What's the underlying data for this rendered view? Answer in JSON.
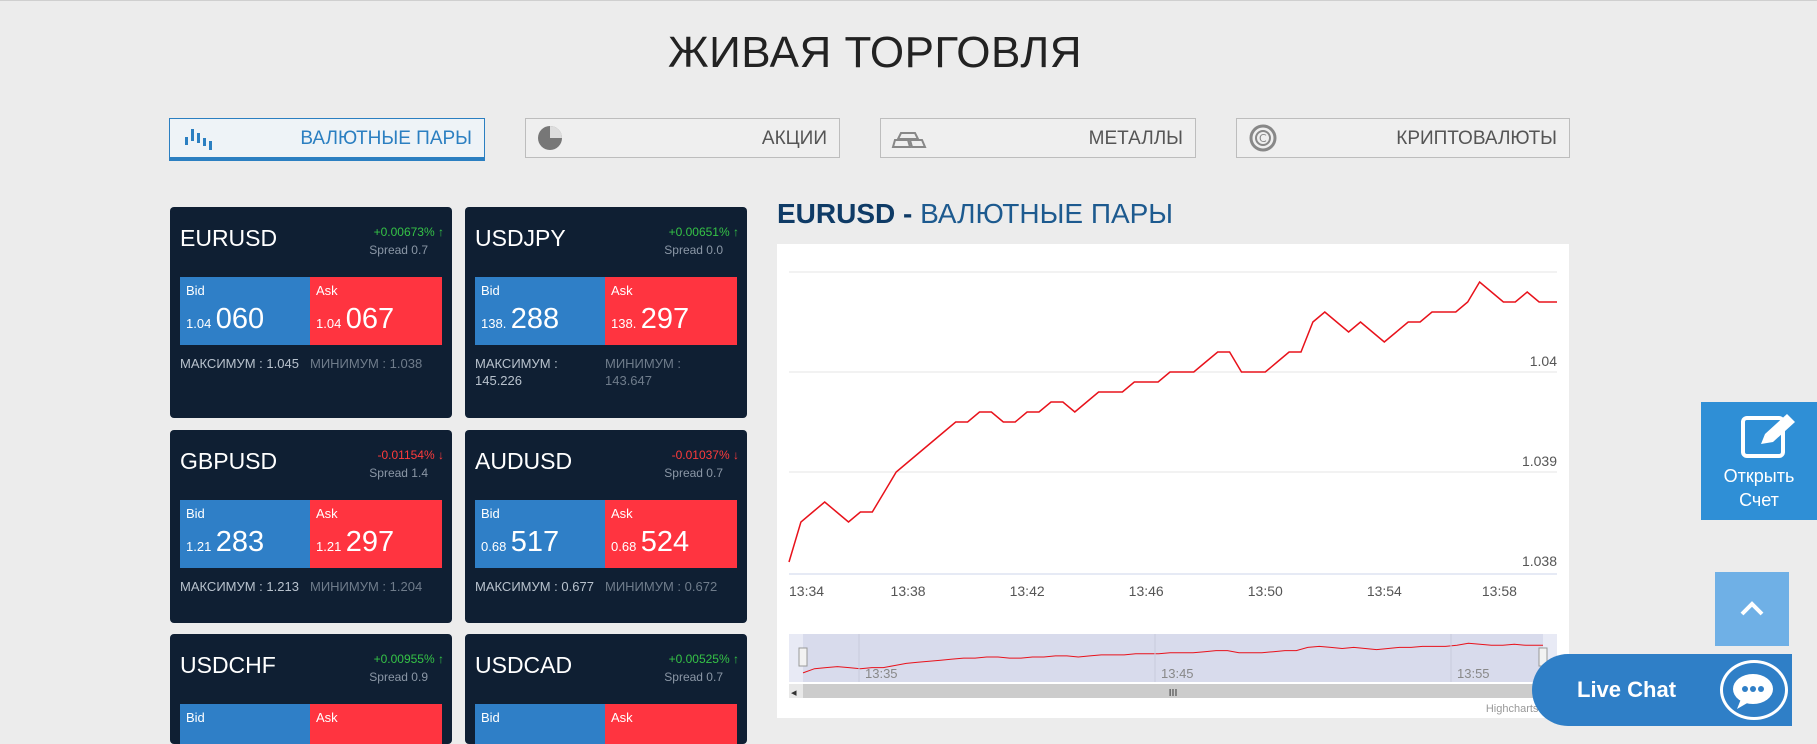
{
  "page_title": "ЖИВАЯ ТОРГОВЛЯ",
  "tabs": [
    {
      "label": "ВАЛЮТНЫЕ ПАРЫ",
      "icon": "candlestick-icon",
      "active": true
    },
    {
      "label": "АКЦИИ",
      "icon": "pie-chart-icon"
    },
    {
      "label": "МЕТАЛЛЫ",
      "icon": "gold-bars-icon"
    },
    {
      "label": "КРИПТОВАЛЮТЫ",
      "icon": "crypto-coin-icon"
    }
  ],
  "cards": [
    {
      "symbol": "EURUSD",
      "change": "+0.00673%",
      "direction": "up",
      "spread": "Spread 0.7",
      "bid_label": "Bid",
      "bid_small": "1.04",
      "bid_big": "060",
      "ask_label": "Ask",
      "ask_small": "1.04",
      "ask_big": "067",
      "max": "МАКСИМУМ : 1.045",
      "min": "МИНИМУМ : 1.038"
    },
    {
      "symbol": "USDJPY",
      "change": "+0.00651%",
      "direction": "up",
      "spread": "Spread 0.0",
      "bid_label": "Bid",
      "bid_small": "138.",
      "bid_big": "288",
      "ask_label": "Ask",
      "ask_small": "138.",
      "ask_big": "297",
      "max": "МАКСИМУМ : 145.226",
      "min": "МИНИМУМ : 143.647"
    },
    {
      "symbol": "GBPUSD",
      "change": "-0.01154%",
      "direction": "down",
      "spread": "Spread 1.4",
      "bid_label": "Bid",
      "bid_small": "1.21",
      "bid_big": "283",
      "ask_label": "Ask",
      "ask_small": "1.21",
      "ask_big": "297",
      "max": "МАКСИМУМ : 1.213",
      "min": "МИНИМУМ : 1.204"
    },
    {
      "symbol": "AUDUSD",
      "change": "-0.01037%",
      "direction": "down",
      "spread": "Spread 0.7",
      "bid_label": "Bid",
      "bid_small": "0.68",
      "bid_big": "517",
      "ask_label": "Ask",
      "ask_small": "0.68",
      "ask_big": "524",
      "max": "МАКСИМУМ : 0.677",
      "min": "МИНИМУМ : 0.672"
    },
    {
      "symbol": "USDCHF",
      "change": "+0.00955%",
      "direction": "up",
      "spread": "Spread 0.9",
      "bid_label": "Bid",
      "ask_label": "Ask"
    },
    {
      "symbol": "USDCAD",
      "change": "+0.00525%",
      "direction": "up",
      "spread": "Spread 0.7",
      "bid_label": "Bid",
      "ask_label": "Ask"
    }
  ],
  "chart_header": {
    "symbol": "EURUSD -",
    "category": "ВАЛЮТНЫЕ ПАРЫ"
  },
  "chart_data": {
    "type": "line",
    "series": [
      {
        "color": "#e8121b"
      }
    ],
    "x_ticks": [
      "13:34",
      "13:38",
      "13:42",
      "13:46",
      "13:50",
      "13:54",
      "13:58"
    ],
    "y_ticks": [
      "1.038",
      "1.039",
      "1.04"
    ],
    "ylim": [
      1.038,
      1.0412
    ],
    "x_range_minutes": [
      0,
      25.8
    ],
    "points": [
      [
        0,
        1.0381
      ],
      [
        0.4,
        1.0385
      ],
      [
        0.8,
        1.0386
      ],
      [
        1.2,
        1.0387
      ],
      [
        1.6,
        1.0386
      ],
      [
        2.0,
        1.0385
      ],
      [
        2.4,
        1.0386
      ],
      [
        2.8,
        1.0386
      ],
      [
        3.2,
        1.0388
      ],
      [
        3.6,
        1.039
      ],
      [
        4.0,
        1.0391
      ],
      [
        4.4,
        1.0392
      ],
      [
        4.8,
        1.0393
      ],
      [
        5.2,
        1.0394
      ],
      [
        5.6,
        1.0395
      ],
      [
        6.0,
        1.0395
      ],
      [
        6.4,
        1.0396
      ],
      [
        6.8,
        1.0396
      ],
      [
        7.2,
        1.0395
      ],
      [
        7.6,
        1.0395
      ],
      [
        8.0,
        1.0396
      ],
      [
        8.4,
        1.0396
      ],
      [
        8.8,
        1.0397
      ],
      [
        9.2,
        1.0397
      ],
      [
        9.6,
        1.0396
      ],
      [
        10.0,
        1.0397
      ],
      [
        10.4,
        1.0398
      ],
      [
        10.8,
        1.0398
      ],
      [
        11.2,
        1.0398
      ],
      [
        11.6,
        1.0399
      ],
      [
        12.0,
        1.0399
      ],
      [
        12.4,
        1.0399
      ],
      [
        12.8,
        1.04
      ],
      [
        13.2,
        1.04
      ],
      [
        13.6,
        1.04
      ],
      [
        14.0,
        1.0401
      ],
      [
        14.4,
        1.0402
      ],
      [
        14.8,
        1.0402
      ],
      [
        15.2,
        1.04
      ],
      [
        15.6,
        1.04
      ],
      [
        16.0,
        1.04
      ],
      [
        16.4,
        1.0401
      ],
      [
        16.8,
        1.0402
      ],
      [
        17.2,
        1.0402
      ],
      [
        17.6,
        1.0405
      ],
      [
        18.0,
        1.0406
      ],
      [
        18.4,
        1.0405
      ],
      [
        18.8,
        1.0404
      ],
      [
        19.2,
        1.0405
      ],
      [
        19.6,
        1.0404
      ],
      [
        20.0,
        1.0403
      ],
      [
        20.4,
        1.0404
      ],
      [
        20.8,
        1.0405
      ],
      [
        21.2,
        1.0405
      ],
      [
        21.6,
        1.0406
      ],
      [
        22.0,
        1.0406
      ],
      [
        22.4,
        1.0406
      ],
      [
        22.8,
        1.0407
      ],
      [
        23.2,
        1.0409
      ],
      [
        23.6,
        1.0408
      ],
      [
        24.0,
        1.0407
      ],
      [
        24.4,
        1.0407
      ],
      [
        24.8,
        1.0408
      ],
      [
        25.2,
        1.0407
      ],
      [
        25.8,
        1.0407
      ]
    ],
    "navigator_ticks": [
      "13:35",
      "13:45",
      "13:55"
    ],
    "credit": "Highcharts.c"
  },
  "side_buttons": {
    "open_account_line1": "Открыть",
    "open_account_line2": "Счет",
    "live_chat": "Live Chat"
  }
}
